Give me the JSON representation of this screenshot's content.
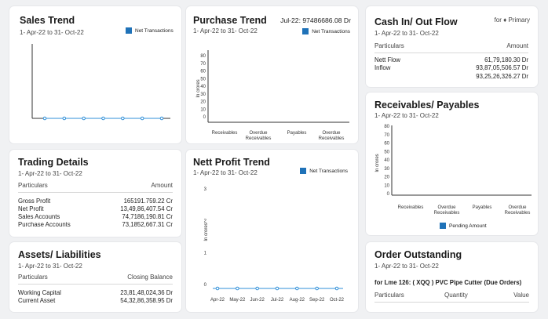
{
  "sales": {
    "title": "Sales Trend",
    "period": "1- Apr-22 to 31- Oct-22",
    "legend": "Net Transactions",
    "chart_data": {
      "type": "line",
      "series": [
        {
          "name": "Net Transactions",
          "values": [
            0,
            0,
            0,
            0,
            0,
            0,
            0
          ]
        }
      ]
    }
  },
  "purchase": {
    "title": "Purchase Trend",
    "period": "1- Apr-22 to 31- Oct-22",
    "headline": "Jul-22: 97486686.08 Dr",
    "legend": "Net Transactions",
    "chart_data": {
      "type": "bar",
      "ylabel": "In crores",
      "yticks": [
        "80",
        "70",
        "60",
        "50",
        "40",
        "30",
        "20",
        "10",
        "0"
      ],
      "categories": [
        "Receivables",
        "Overdue Receivables",
        "Payables",
        "Overdue Receivables"
      ]
    }
  },
  "cash": {
    "title": "Cash In/ Out Flow",
    "period": "1- Apr-22 to 31- Oct-22",
    "filter": "for ♦ Primary",
    "col_particulars": "Particulars",
    "col_amount": "Amount",
    "rows": [
      {
        "label": "Nett Flow",
        "value": "61,79,180.30 Dr"
      },
      {
        "label": "Inflow",
        "value": "93,87,05,506.57 Dr"
      },
      {
        "label": "",
        "value": "93,25,26,326.27 Dr"
      }
    ]
  },
  "trading": {
    "title": "Trading Details",
    "period": "1- Apr-22 to 31- Oct-22",
    "col_particulars": "Particulars",
    "col_amount": "Amount",
    "rows": [
      {
        "label": "Gross Profit",
        "value": "165191.759.22 Cr"
      },
      {
        "label": "Net Profit",
        "value": "13,49,86,407.54 Cr"
      },
      {
        "label": "Sales Accounts",
        "value": "74,7186,190.81 Cr"
      },
      {
        "label": "Purchase Accounts",
        "value": "73,1852,667.31 Cr"
      }
    ]
  },
  "profit": {
    "title": "Nett Profit Trend",
    "period": "1- Apr-22 to 31- Oct-22",
    "legend": "Net Transactions",
    "chart_data": {
      "type": "line",
      "ylabel": "In crores",
      "yticks": [
        "3",
        "2",
        "1",
        "0"
      ],
      "categories": [
        "Apr-22",
        "May-22",
        "Jun-22",
        "Jul-22",
        "Aug-22",
        "Sep-22",
        "Oct-22"
      ],
      "series": [
        {
          "name": "Net Transactions",
          "values": [
            0,
            0,
            0,
            0,
            0,
            0,
            0
          ]
        }
      ]
    }
  },
  "receivables": {
    "title": "Receivables/ Payables",
    "period": "1- Apr-22 to 31- Oct-22",
    "legend": "Pending Amount",
    "chart_data": {
      "type": "bar",
      "ylabel": "In crores",
      "yticks": [
        "80",
        "70",
        "60",
        "50",
        "40",
        "30",
        "20",
        "10",
        "0"
      ],
      "categories": [
        "Receivables",
        "Overdue Receivables",
        "Payables",
        "Overdue Receivables"
      ]
    }
  },
  "assets": {
    "title": "Assets/ Liabilities",
    "period": "1- Apr-22 to 31- Oct-22",
    "col_particulars": "Particulars",
    "col_balance": "Closing Balance",
    "rows": [
      {
        "label": "Working Capital",
        "value": "23,81,48,024,36 Dr"
      },
      {
        "label": "Current Asset",
        "value": "54,32,86,358.95 Dr"
      }
    ]
  },
  "orders": {
    "title": "Order Outstanding",
    "period": "1- Apr-22 to 31- Oct-22",
    "item": "for Lme 126: ( XQQ ) PVC Pipe Cutter (Due Orders)",
    "col_particulars": "Particulars",
    "col_quantity": "Quantity",
    "col_value": "Value"
  },
  "colors": {
    "accent": "#1f72b8",
    "marker": "#2f8fd8"
  }
}
